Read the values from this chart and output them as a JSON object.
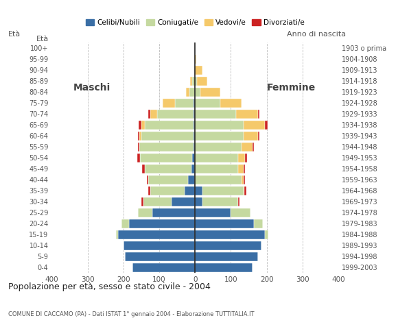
{
  "age_groups": [
    "0-4",
    "5-9",
    "10-14",
    "15-19",
    "20-24",
    "25-29",
    "30-34",
    "35-39",
    "40-44",
    "45-49",
    "50-54",
    "55-59",
    "60-64",
    "65-69",
    "70-74",
    "75-79",
    "80-84",
    "85-89",
    "90-94",
    "95-99",
    "100+"
  ],
  "birth_years": [
    "1999-2003",
    "1994-1998",
    "1989-1993",
    "1984-1988",
    "1979-1983",
    "1974-1978",
    "1969-1973",
    "1964-1968",
    "1959-1963",
    "1954-1958",
    "1949-1953",
    "1944-1948",
    "1939-1943",
    "1934-1938",
    "1929-1933",
    "1924-1928",
    "1919-1923",
    "1914-1918",
    "1909-1913",
    "1904-1908",
    "1903 o prima"
  ],
  "males": {
    "celibe": [
      175,
      195,
      200,
      215,
      185,
      120,
      65,
      30,
      20,
      10,
      8,
      5,
      5,
      5,
      5,
      5,
      0,
      0,
      0,
      0,
      0
    ],
    "coniugato": [
      0,
      0,
      0,
      5,
      20,
      40,
      80,
      95,
      110,
      130,
      145,
      150,
      145,
      135,
      100,
      50,
      15,
      8,
      3,
      0,
      0
    ],
    "vedovo": [
      0,
      0,
      0,
      0,
      0,
      0,
      0,
      0,
      0,
      0,
      0,
      0,
      5,
      10,
      20,
      35,
      10,
      5,
      0,
      0,
      0
    ],
    "divorziato": [
      0,
      0,
      0,
      0,
      0,
      0,
      5,
      5,
      5,
      8,
      8,
      5,
      5,
      8,
      5,
      0,
      0,
      0,
      0,
      0,
      0
    ]
  },
  "females": {
    "celibe": [
      160,
      175,
      185,
      195,
      165,
      100,
      20,
      20,
      0,
      0,
      0,
      0,
      0,
      0,
      0,
      0,
      0,
      0,
      0,
      0,
      0
    ],
    "coniugato": [
      0,
      0,
      0,
      10,
      25,
      55,
      100,
      115,
      130,
      120,
      120,
      130,
      135,
      135,
      115,
      70,
      15,
      5,
      0,
      0,
      0
    ],
    "vedovo": [
      0,
      0,
      0,
      0,
      0,
      0,
      0,
      3,
      5,
      15,
      20,
      30,
      40,
      60,
      60,
      60,
      55,
      30,
      20,
      3,
      0
    ],
    "divorziato": [
      0,
      0,
      0,
      0,
      0,
      0,
      5,
      5,
      5,
      5,
      5,
      5,
      5,
      8,
      5,
      0,
      0,
      0,
      0,
      0,
      0
    ]
  },
  "colors": {
    "celibe": "#3a6ea5",
    "coniugato": "#c5d9a0",
    "vedovo": "#f5c96a",
    "divorziato": "#cc2222"
  },
  "legend_labels": [
    "Celibi/Nubili",
    "Coniugati/e",
    "Vedovi/e",
    "Divorziati/e"
  ],
  "title": "Popolazione per età, sesso e stato civile - 2004",
  "subtitle": "COMUNE DI CACCAMO (PA) - Dati ISTAT 1° gennaio 2004 - Elaborazione TUTTITALIA.IT",
  "label_maschi": "Maschi",
  "label_femmine": "Femmine",
  "label_eta": "Età",
  "label_anno": "Anno di nascita",
  "xlim": 400,
  "background_color": "#ffffff",
  "grid_color": "#bbbbbb"
}
